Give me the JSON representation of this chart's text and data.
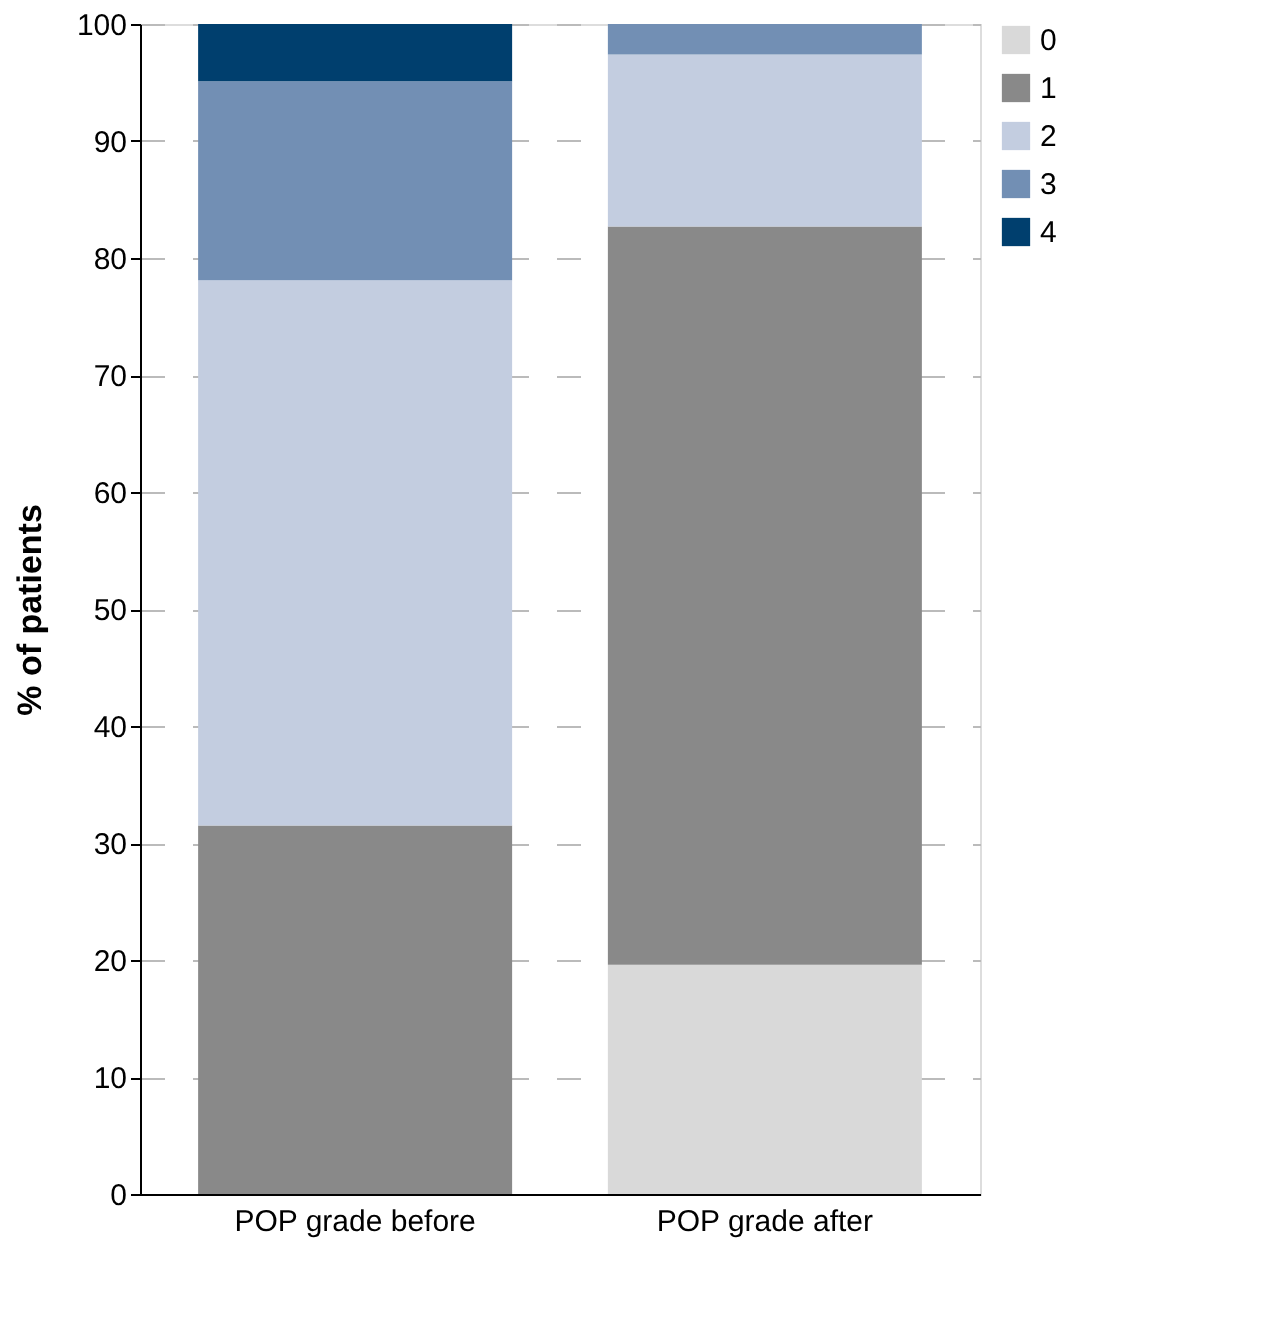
{
  "chart_data": {
    "type": "bar",
    "stacked": true,
    "ylabel": "% of patients",
    "legend": "top right",
    "grid": "y",
    "categories": [
      "POP grade before",
      "POP grade after"
    ],
    "ylim": [
      0,
      100
    ],
    "yticks": [
      0,
      10,
      20,
      30,
      40,
      50,
      60,
      70,
      80,
      90,
      100
    ],
    "series": [
      {
        "name": "0",
        "color": "#d9d9d9",
        "values": [
          0,
          19.6
        ]
      },
      {
        "name": "1",
        "color": "#898989",
        "values": [
          31.5,
          63.1
        ]
      },
      {
        "name": "2",
        "color": "#c3cde0",
        "values": [
          46.6,
          14.7
        ]
      },
      {
        "name": "3",
        "color": "#728fb4",
        "values": [
          17.0,
          2.6
        ]
      },
      {
        "name": "4",
        "color": "#003f6e",
        "values": [
          4.9,
          0
        ]
      }
    ]
  }
}
